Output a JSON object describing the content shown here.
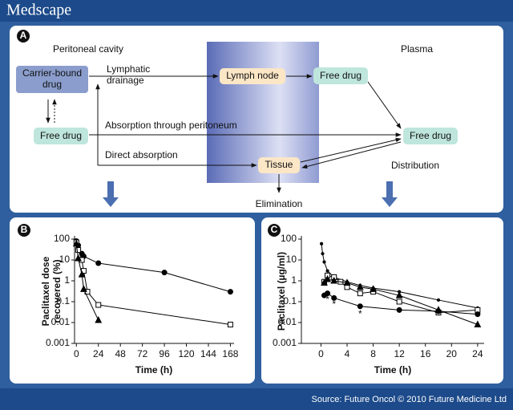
{
  "header": {
    "brand": "Medscape"
  },
  "footer": {
    "source": "Source: Future Oncol © 2010 Future Medicine Ltd"
  },
  "diagram": {
    "panel": "A",
    "regions": [
      "Peritoneal cavity",
      "Plasma"
    ],
    "nodes": [
      {
        "label": [
          "Carrier-bound",
          "drug"
        ]
      },
      {
        "label": [
          "Free drug"
        ]
      },
      {
        "label": [
          "Lymph node"
        ]
      },
      {
        "label": [
          "Free drug"
        ]
      },
      {
        "label": [
          "Free drug"
        ]
      },
      {
        "label": [
          "Tissue"
        ]
      }
    ],
    "edge_labels": [
      [
        "Lymphatic",
        "drainage"
      ],
      [
        "Absorption through peritoneum"
      ],
      [
        "Direct absorption"
      ],
      [
        "Distribution"
      ],
      [
        "Elimination"
      ]
    ]
  },
  "chart_data": [
    {
      "type": "line",
      "panel": "B",
      "ylabel": [
        "Paclitaxel dose",
        "recovered (%)"
      ],
      "xlabel": "Time (h)",
      "xlim": [
        -2,
        172
      ],
      "xticks": [
        0,
        24,
        48,
        72,
        96,
        120,
        144,
        168
      ],
      "ylim": [
        0.001,
        100
      ],
      "yticks": [
        100,
        10,
        1,
        0.1,
        0.01,
        0.001
      ],
      "log_y": true,
      "series": [
        {
          "marker": "circle",
          "color": "#000000",
          "marker_fill": "#000000",
          "x": [
            0,
            2,
            6,
            8,
            24,
            96,
            168
          ],
          "values": [
            80,
            50,
            20,
            15,
            7,
            2.5,
            0.3
          ]
        },
        {
          "marker": "square",
          "color": "#000000",
          "marker_fill": "#ffffff",
          "x": [
            0,
            2,
            6,
            8,
            12,
            24,
            168
          ],
          "values": [
            70,
            30,
            10,
            3,
            0.3,
            0.07,
            0.008
          ]
        },
        {
          "marker": "triangle",
          "color": "#000000",
          "marker_fill": "#000000",
          "x": [
            0,
            2,
            6,
            8,
            24
          ],
          "values": [
            60,
            12,
            2,
            0.4,
            0.013
          ]
        }
      ]
    },
    {
      "type": "line",
      "panel": "C",
      "ylabel": "Paclitaxel (µg/ml)",
      "xlabel": "Time (h)",
      "xlim": [
        -3,
        25
      ],
      "xticks": [
        0,
        4,
        8,
        12,
        16,
        20,
        24
      ],
      "ylim": [
        0.001,
        100
      ],
      "yticks": [
        100,
        10,
        1,
        0.1,
        0.01,
        0.001
      ],
      "log_y": true,
      "series": [
        {
          "marker": "dot",
          "color": "#000000",
          "marker_fill": "#000000",
          "x": [
            0.08,
            0.25,
            0.5,
            1,
            2,
            4,
            6,
            8,
            12,
            18,
            24
          ],
          "values": [
            60,
            20,
            8,
            3,
            1.5,
            0.9,
            0.6,
            0.45,
            0.3,
            0.12,
            0.05
          ]
        },
        {
          "marker": "square",
          "color": "#000000",
          "marker_fill": "#ffffff",
          "x": [
            0.5,
            1,
            2,
            3,
            4,
            6,
            8,
            12,
            18,
            24
          ],
          "values": [
            0.9,
            1.8,
            1.5,
            0.9,
            0.5,
            0.25,
            0.3,
            0.1,
            0.03,
            0.04
          ]
        },
        {
          "marker": "triangle",
          "color": "#000000",
          "marker_fill": "#000000",
          "x": [
            0.5,
            1,
            2,
            4,
            6,
            8,
            12,
            18,
            24
          ],
          "values": [
            0.8,
            1.2,
            1,
            0.8,
            0.5,
            0.4,
            0.2,
            0.04,
            0.008
          ]
        },
        {
          "marker": "circle",
          "color": "#000000",
          "marker_fill": "#000000",
          "x": [
            0.5,
            1,
            2,
            6,
            12,
            18,
            24
          ],
          "values": [
            0.2,
            0.25,
            0.15,
            0.06,
            0.04,
            0.035,
            0.025
          ]
        }
      ],
      "annotations": [
        {
          "text": "*",
          "x": 1,
          "y": 0.12
        },
        {
          "text": "*",
          "x": 2,
          "y": 0.07
        },
        {
          "text": "*",
          "x": 6,
          "y": 0.025
        }
      ]
    }
  ]
}
